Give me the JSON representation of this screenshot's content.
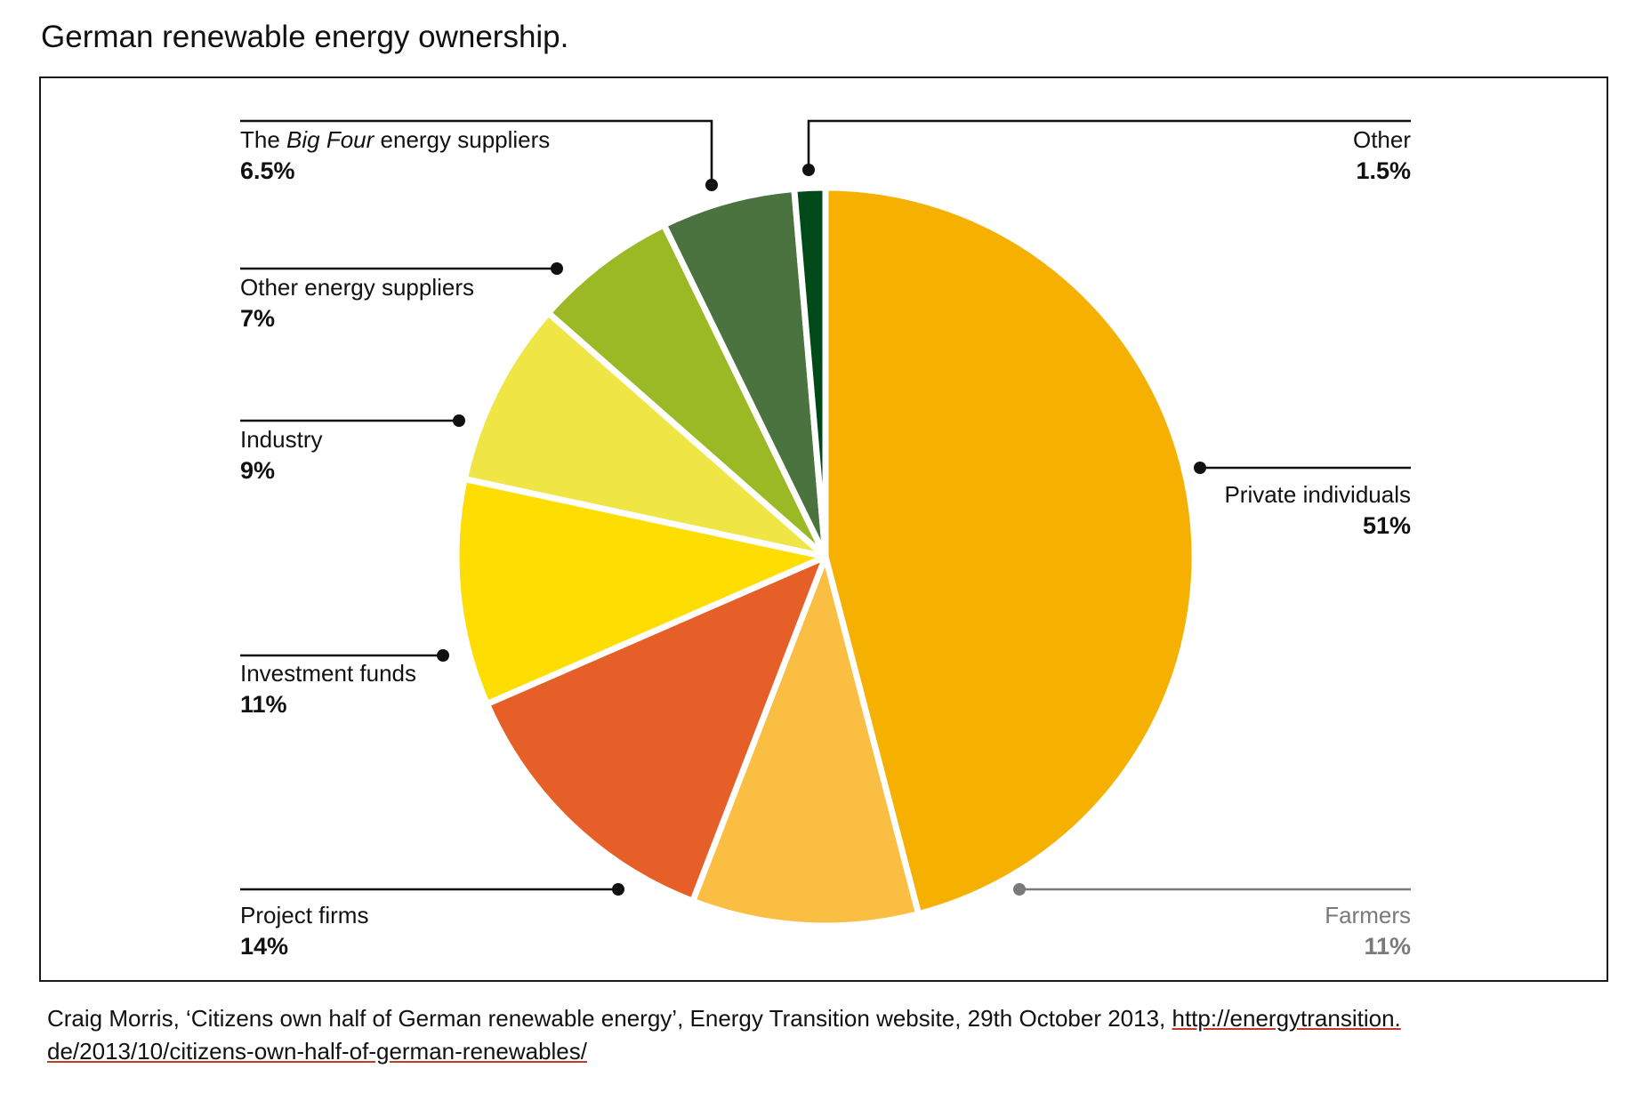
{
  "title": "German renewable energy ownership.",
  "source": {
    "text": "Craig Morris, ‘Citizens own half of German renewable energy’, Energy Transition website, 29th October 2013, ",
    "link": "http://energytransition.de/2013/10/citizens-own-half-of-german-renewables/",
    "link_display": "http://energytransition. de/2013/10/citizens-own-half-of-german-renewables/"
  },
  "chart_data": {
    "type": "pie",
    "title": "German renewable energy ownership.",
    "slices": [
      {
        "label": "Private individuals",
        "value": 51,
        "value_label": "51%",
        "color": "#F5B000",
        "label_side": "right"
      },
      {
        "label": "Farmers",
        "value": 11,
        "value_label": "11%",
        "color": "#FABE42",
        "label_side": "right",
        "label_color": "#7a7a7a"
      },
      {
        "label": "Project firms",
        "value": 14,
        "value_label": "14%",
        "color": "#E65E28",
        "label_side": "left"
      },
      {
        "label": "Investment funds",
        "value": 11,
        "value_label": "11%",
        "color": "#FEDD00",
        "label_side": "left"
      },
      {
        "label": "Industry",
        "value": 9,
        "value_label": "9%",
        "color": "#EFE646",
        "label_side": "left"
      },
      {
        "label": "Other energy suppliers",
        "value": 7,
        "value_label": "7%",
        "color": "#9AB924",
        "label_side": "left"
      },
      {
        "label_parts": [
          "The ",
          "Big Four",
          " energy suppliers"
        ],
        "label": "The Big Four energy suppliers",
        "value": 6.5,
        "value_label": "6.5%",
        "color": "#4A7340",
        "label_side": "left"
      },
      {
        "label": "Other",
        "value": 1.5,
        "value_label": "1.5%",
        "color": "#004A1A",
        "label_side": "right"
      }
    ],
    "start": "12 o'clock",
    "direction": "clockwise",
    "legend": "none (leader-line callouts)"
  }
}
